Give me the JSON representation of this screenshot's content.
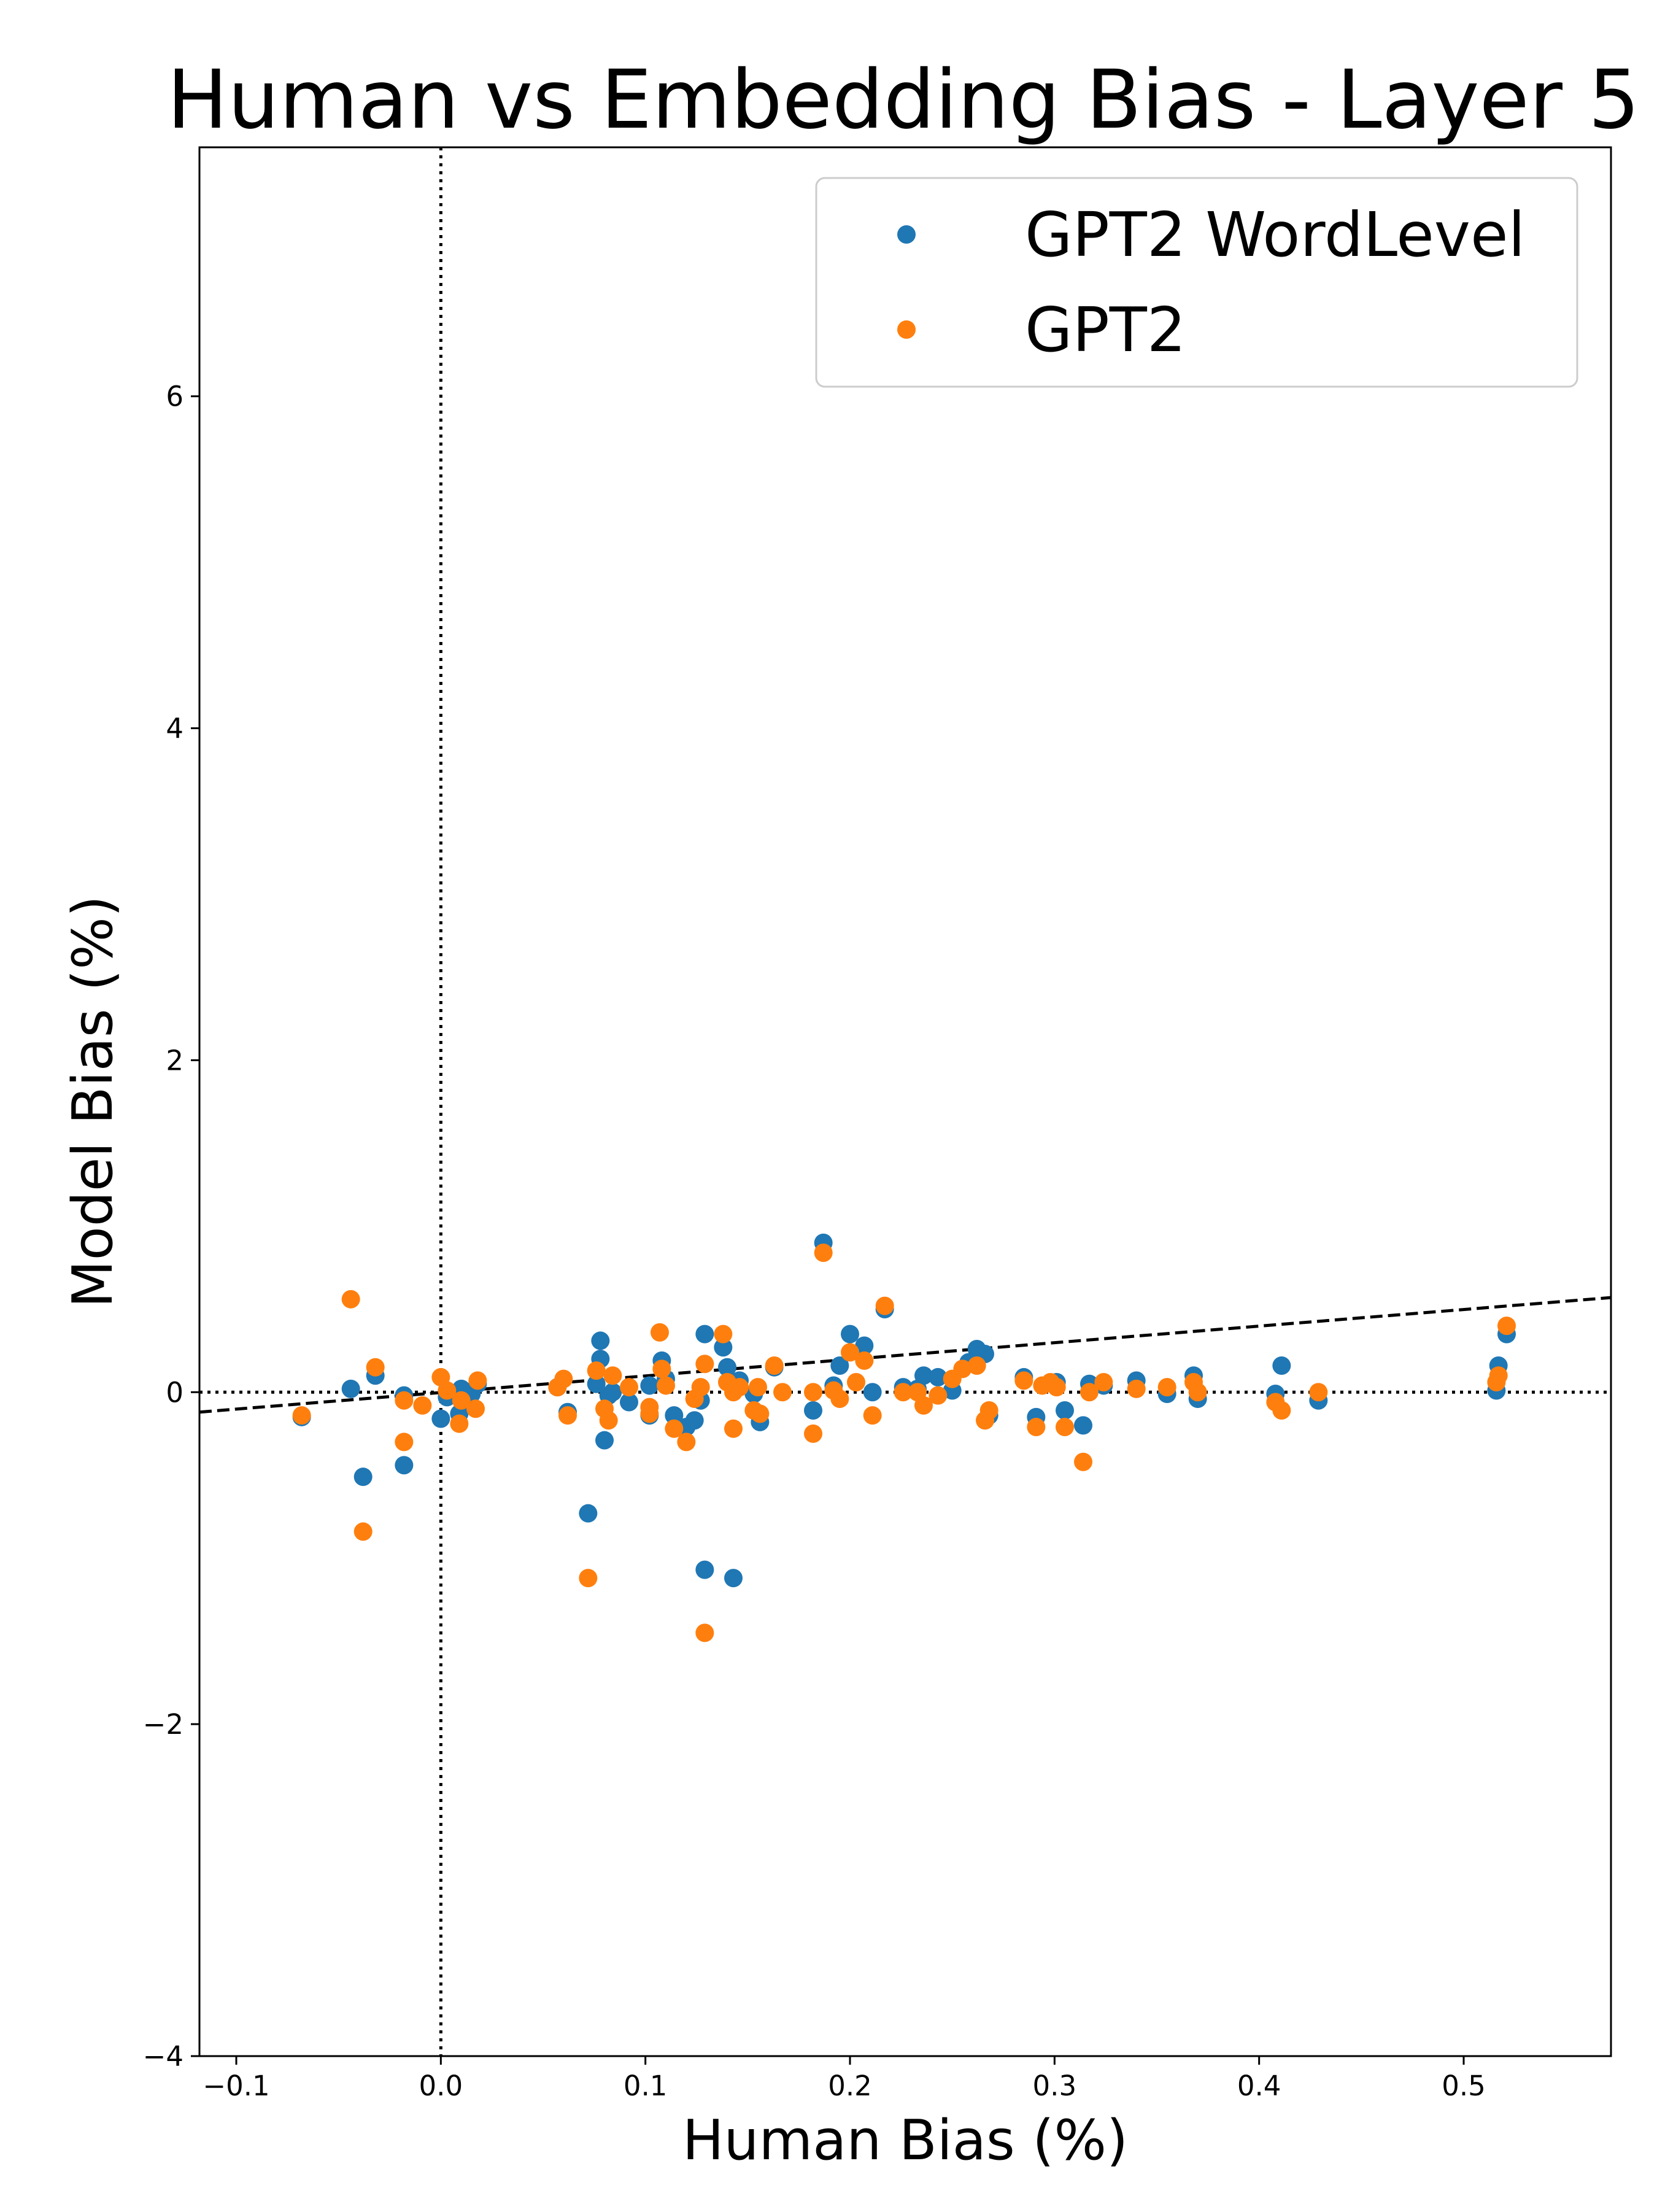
{
  "chart_data": {
    "type": "scatter",
    "title": "Human vs Embedding Bias - Layer 5",
    "xlabel": "Human Bias (%)",
    "ylabel": "Model Bias (%)",
    "xlim": [
      -0.118,
      0.572
    ],
    "ylim": [
      -4,
      7.5
    ],
    "xticks": [
      -0.1,
      0.0,
      0.1,
      0.2,
      0.3,
      0.4,
      0.5
    ],
    "xtick_labels": [
      "−0.1",
      "0.0",
      "0.1",
      "0.2",
      "0.3",
      "0.4",
      "0.5"
    ],
    "yticks": [
      -4,
      -2,
      0,
      2,
      4,
      6
    ],
    "ytick_labels": [
      "−4",
      "−2",
      "0",
      "2",
      "4",
      "6"
    ],
    "grid": false,
    "legend_position": "top-right",
    "reference_lines": {
      "vertical_x": 0,
      "horizontal_y": 0,
      "style": "dotted"
    },
    "trend_line": {
      "style": "dashed",
      "color": "#000000",
      "points": [
        [
          -0.118,
          -0.12
        ],
        [
          0.572,
          0.57
        ]
      ]
    },
    "series": [
      {
        "name": "GPT2 WordLevel",
        "color": "#1f77b4",
        "points": [
          [
            -0.068,
            -0.15
          ],
          [
            -0.044,
            0.02
          ],
          [
            -0.038,
            -0.51
          ],
          [
            -0.032,
            0.1
          ],
          [
            -0.018,
            -0.02
          ],
          [
            -0.018,
            -0.44
          ],
          [
            0.0,
            -0.16
          ],
          [
            0.003,
            -0.03
          ],
          [
            0.009,
            -0.13
          ],
          [
            0.01,
            0.02
          ],
          [
            0.015,
            -0.01
          ],
          [
            0.018,
            0.05
          ],
          [
            0.057,
            0.03
          ],
          [
            0.062,
            -0.12
          ],
          [
            0.072,
            -0.73
          ],
          [
            0.076,
            0.05
          ],
          [
            0.078,
            0.2
          ],
          [
            0.078,
            0.31
          ],
          [
            0.08,
            -0.29
          ],
          [
            0.082,
            -0.02
          ],
          [
            0.084,
            0.0
          ],
          [
            0.092,
            -0.06
          ],
          [
            0.102,
            0.04
          ],
          [
            0.102,
            -0.14
          ],
          [
            0.108,
            0.19
          ],
          [
            0.11,
            0.08
          ],
          [
            0.114,
            -0.14
          ],
          [
            0.12,
            -0.21
          ],
          [
            0.124,
            -0.17
          ],
          [
            0.127,
            -0.05
          ],
          [
            0.129,
            0.35
          ],
          [
            0.129,
            -1.07
          ],
          [
            0.138,
            0.27
          ],
          [
            0.14,
            0.15
          ],
          [
            0.143,
            -1.12
          ],
          [
            0.146,
            0.07
          ],
          [
            0.153,
            -0.01
          ],
          [
            0.156,
            -0.18
          ],
          [
            0.163,
            0.15
          ],
          [
            0.182,
            -0.11
          ],
          [
            0.187,
            0.9
          ],
          [
            0.192,
            0.04
          ],
          [
            0.195,
            0.16
          ],
          [
            0.2,
            0.35
          ],
          [
            0.207,
            0.28
          ],
          [
            0.211,
            0.0
          ],
          [
            0.217,
            0.5
          ],
          [
            0.226,
            0.03
          ],
          [
            0.233,
            0.02
          ],
          [
            0.236,
            0.1
          ],
          [
            0.243,
            0.09
          ],
          [
            0.25,
            0.01
          ],
          [
            0.258,
            0.18
          ],
          [
            0.262,
            0.26
          ],
          [
            0.266,
            0.23
          ],
          [
            0.268,
            -0.14
          ],
          [
            0.285,
            0.09
          ],
          [
            0.291,
            -0.15
          ],
          [
            0.301,
            0.06
          ],
          [
            0.305,
            -0.11
          ],
          [
            0.314,
            -0.2
          ],
          [
            0.317,
            0.05
          ],
          [
            0.324,
            0.04
          ],
          [
            0.34,
            0.07
          ],
          [
            0.355,
            -0.01
          ],
          [
            0.368,
            0.1
          ],
          [
            0.37,
            -0.04
          ],
          [
            0.408,
            -0.01
          ],
          [
            0.411,
            0.16
          ],
          [
            0.429,
            -0.05
          ],
          [
            0.516,
            0.01
          ],
          [
            0.517,
            0.16
          ],
          [
            0.521,
            0.35
          ]
        ]
      },
      {
        "name": "GPT2",
        "color": "#ff7f0e",
        "points": [
          [
            -0.068,
            -0.14
          ],
          [
            -0.044,
            0.56
          ],
          [
            -0.038,
            -0.84
          ],
          [
            -0.032,
            0.15
          ],
          [
            -0.018,
            -0.05
          ],
          [
            -0.018,
            -0.3
          ],
          [
            -0.009,
            -0.08
          ],
          [
            0.0,
            0.09
          ],
          [
            0.003,
            0.01
          ],
          [
            0.009,
            -0.19
          ],
          [
            0.01,
            -0.05
          ],
          [
            0.017,
            -0.1
          ],
          [
            0.018,
            0.07
          ],
          [
            0.057,
            0.03
          ],
          [
            0.06,
            0.08
          ],
          [
            0.062,
            -0.14
          ],
          [
            0.072,
            -1.12
          ],
          [
            0.076,
            0.13
          ],
          [
            0.08,
            -0.1
          ],
          [
            0.082,
            -0.17
          ],
          [
            0.084,
            0.1
          ],
          [
            0.092,
            0.03
          ],
          [
            0.102,
            -0.09
          ],
          [
            0.102,
            -0.13
          ],
          [
            0.107,
            0.36
          ],
          [
            0.108,
            0.14
          ],
          [
            0.11,
            0.04
          ],
          [
            0.114,
            -0.22
          ],
          [
            0.12,
            -0.3
          ],
          [
            0.124,
            -0.04
          ],
          [
            0.127,
            0.03
          ],
          [
            0.129,
            0.17
          ],
          [
            0.129,
            -1.45
          ],
          [
            0.138,
            0.35
          ],
          [
            0.14,
            0.06
          ],
          [
            0.143,
            0.0
          ],
          [
            0.143,
            -0.22
          ],
          [
            0.146,
            0.03
          ],
          [
            0.153,
            -0.11
          ],
          [
            0.155,
            0.03
          ],
          [
            0.156,
            -0.13
          ],
          [
            0.163,
            0.16
          ],
          [
            0.167,
            0.0
          ],
          [
            0.182,
            -0.25
          ],
          [
            0.182,
            0.0
          ],
          [
            0.187,
            0.84
          ],
          [
            0.192,
            0.01
          ],
          [
            0.195,
            -0.04
          ],
          [
            0.2,
            0.24
          ],
          [
            0.203,
            0.06
          ],
          [
            0.207,
            0.19
          ],
          [
            0.211,
            -0.14
          ],
          [
            0.217,
            0.52
          ],
          [
            0.226,
            0.0
          ],
          [
            0.233,
            0.0
          ],
          [
            0.236,
            -0.08
          ],
          [
            0.243,
            -0.02
          ],
          [
            0.25,
            0.08
          ],
          [
            0.255,
            0.14
          ],
          [
            0.262,
            0.16
          ],
          [
            0.266,
            -0.17
          ],
          [
            0.268,
            -0.11
          ],
          [
            0.285,
            0.07
          ],
          [
            0.291,
            -0.21
          ],
          [
            0.294,
            0.04
          ],
          [
            0.298,
            0.06
          ],
          [
            0.301,
            0.03
          ],
          [
            0.305,
            -0.21
          ],
          [
            0.314,
            -0.42
          ],
          [
            0.317,
            0.0
          ],
          [
            0.324,
            0.06
          ],
          [
            0.34,
            0.02
          ],
          [
            0.355,
            0.03
          ],
          [
            0.368,
            0.06
          ],
          [
            0.37,
            0.0
          ],
          [
            0.408,
            -0.06
          ],
          [
            0.411,
            -0.11
          ],
          [
            0.429,
            0.0
          ],
          [
            0.516,
            0.06
          ],
          [
            0.517,
            0.1
          ],
          [
            0.521,
            0.4
          ]
        ]
      }
    ]
  }
}
